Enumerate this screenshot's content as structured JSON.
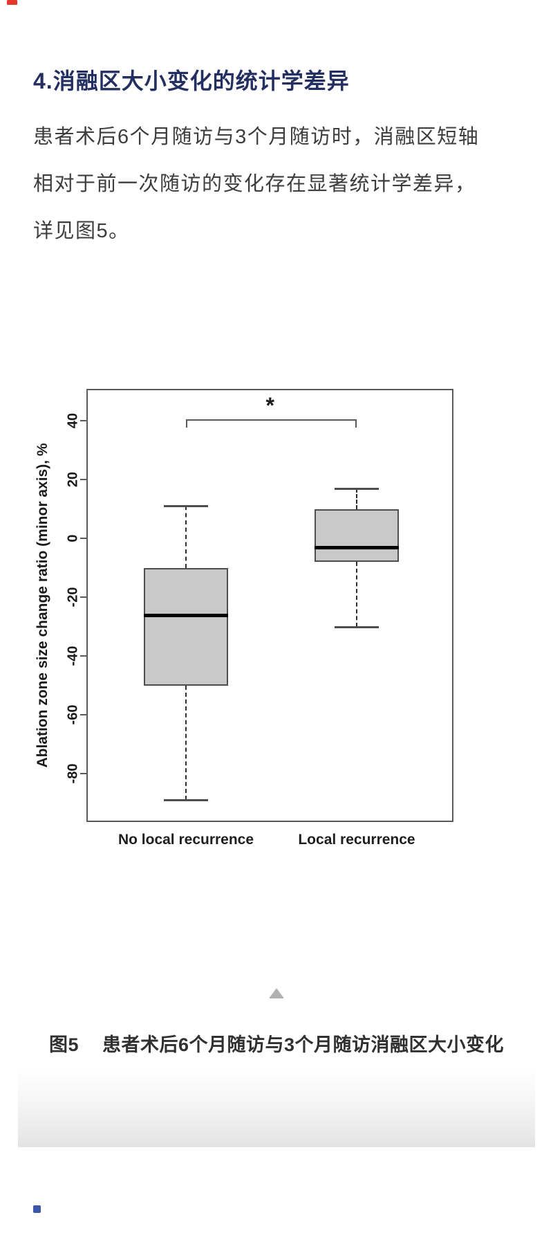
{
  "page": {
    "top_marker_color": "#e5392e",
    "bottom_marker_color": "#3d56a6"
  },
  "article": {
    "heading": "4.消融区大小变化的统计学差异",
    "paragraph_lines": [
      "患者术后6个月随访与3个月随访时，消融区短轴",
      "相对于前一次随访的变化存在显著统计学差异，",
      "详见图5。"
    ],
    "figure_caption": {
      "label": "图5",
      "text": "患者术后6个月随访与3个月随访消融区大小变化"
    }
  },
  "chart_data": {
    "type": "boxplot",
    "title": "",
    "ylabel": "Ablation zone size change ratio (minor axis), %",
    "xlabel": "",
    "yticks": [
      40,
      20,
      0,
      -20,
      -40,
      -60,
      -80
    ],
    "ylim": [
      -96,
      51
    ],
    "grid": false,
    "legend": "none",
    "categories": [
      "No local recurrence",
      "Local recurrence"
    ],
    "series": [
      {
        "name": "No local recurrence",
        "whisker_low": -89,
        "q1": -50,
        "median": -26,
        "q3": -10,
        "whisker_high": 11
      },
      {
        "name": "Local recurrence",
        "whisker_low": -30,
        "q1": -8,
        "median": -3,
        "q3": 10,
        "whisker_high": 17
      }
    ],
    "significance": {
      "symbol": "*",
      "between": [
        "No local recurrence",
        "Local recurrence"
      ]
    },
    "colors": {
      "box_fill": "#c9c9c9",
      "box_border": "#4d4d4d",
      "median": "#000000",
      "whisker": "#2e2e2e",
      "frame": "#5a5a5a"
    }
  }
}
